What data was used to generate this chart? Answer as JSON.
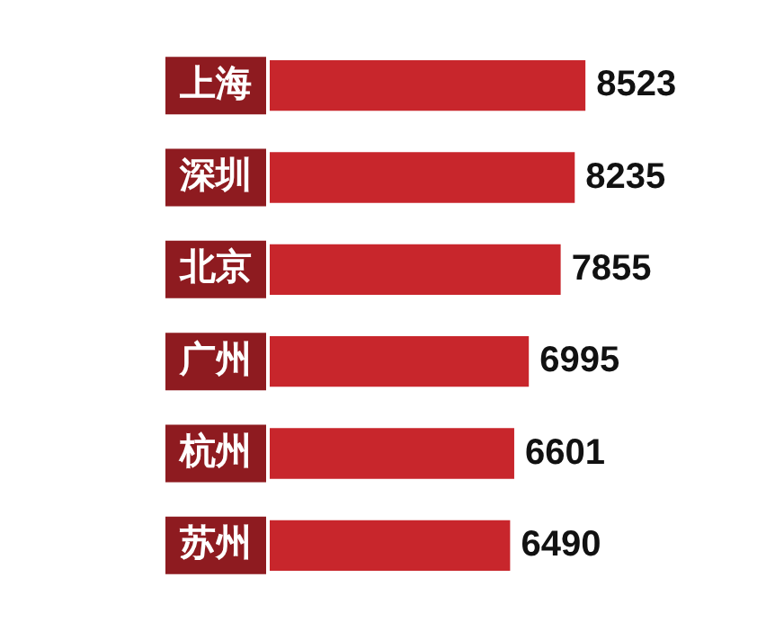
{
  "chart_data": {
    "type": "bar",
    "orientation": "horizontal",
    "categories": [
      "上海",
      "深圳",
      "北京",
      "广州",
      "杭州",
      "苏州"
    ],
    "values": [
      8523,
      8235,
      7855,
      6995,
      6601,
      6490
    ],
    "color": "#c8262c",
    "data_labels": true,
    "tick_labels": "y",
    "legend": false
  }
}
